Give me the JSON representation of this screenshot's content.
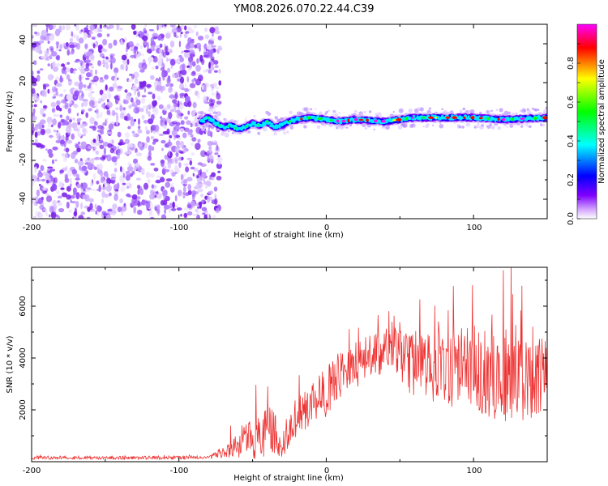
{
  "title": "YM08.2026.070.22.44.C39",
  "chart_data": [
    {
      "type": "heatmap",
      "xlabel": "Height of straight line (km)",
      "ylabel": "Frequency (Hz)",
      "xlim": [
        -200,
        150
      ],
      "ylim": [
        -50,
        50
      ],
      "xticks": [
        "-200",
        "-100",
        "0",
        "100"
      ],
      "yticks": [
        "40",
        "20",
        "0",
        "-20",
        "-40"
      ],
      "colorbar": {
        "label": "Normalized spectral amplitude",
        "range": [
          0,
          1
        ],
        "ticks": [
          "0.0",
          "0.2",
          "0.4",
          "0.6",
          "0.8"
        ],
        "colors": [
          "#ffffff",
          "#d0a0ff",
          "#8000ff",
          "#0000ff",
          "#00ffff",
          "#00ff00",
          "#ffff00",
          "#ff0000",
          "#ff00ff"
        ]
      },
      "noise_region": {
        "x_from": -200,
        "x_to": -78,
        "freq_from": -50,
        "freq_to": 50
      },
      "ridge": [
        {
          "x": -85,
          "f": 0
        },
        {
          "x": -80,
          "f": 2
        },
        {
          "x": -75,
          "f": -1
        },
        {
          "x": -70,
          "f": -3
        },
        {
          "x": -65,
          "f": -2
        },
        {
          "x": -60,
          "f": -4
        },
        {
          "x": -55,
          "f": -3
        },
        {
          "x": -50,
          "f": -1
        },
        {
          "x": -45,
          "f": -2
        },
        {
          "x": -40,
          "f": 0
        },
        {
          "x": -35,
          "f": -3
        },
        {
          "x": -30,
          "f": -2
        },
        {
          "x": -25,
          "f": 0
        },
        {
          "x": -20,
          "f": 1
        },
        {
          "x": -10,
          "f": 2
        },
        {
          "x": 0,
          "f": 1
        },
        {
          "x": 10,
          "f": 0
        },
        {
          "x": 20,
          "f": 1
        },
        {
          "x": 40,
          "f": 0
        },
        {
          "x": 60,
          "f": 2
        },
        {
          "x": 80,
          "f": 2
        },
        {
          "x": 100,
          "f": 2
        },
        {
          "x": 120,
          "f": 1
        },
        {
          "x": 150,
          "f": 2
        }
      ]
    },
    {
      "type": "line",
      "xlabel": "Height of straight line (km)",
      "ylabel": "SNR (10 * v/v)",
      "xlim": [
        -200,
        150
      ],
      "ylim": [
        0,
        7500
      ],
      "xticks": [
        "-200",
        "-100",
        "0",
        "100"
      ],
      "yticks": [
        "6000",
        "4000",
        "2000"
      ],
      "series": [
        {
          "name": "SNR",
          "color": "#ee3333",
          "envelope": [
            {
              "x": -200,
              "base": 150,
              "amp": 100
            },
            {
              "x": -80,
              "base": 160,
              "amp": 100
            },
            {
              "x": -70,
              "base": 350,
              "amp": 300
            },
            {
              "x": -60,
              "base": 700,
              "amp": 900
            },
            {
              "x": -50,
              "base": 900,
              "amp": 1200
            },
            {
              "x": -45,
              "base": 1100,
              "amp": 1600
            },
            {
              "x": -35,
              "base": 1100,
              "amp": 1400
            },
            {
              "x": -30,
              "base": 300,
              "amp": 400
            },
            {
              "x": -25,
              "base": 1100,
              "amp": 800
            },
            {
              "x": -20,
              "base": 1800,
              "amp": 1500
            },
            {
              "x": -10,
              "base": 2300,
              "amp": 1200
            },
            {
              "x": 0,
              "base": 2700,
              "amp": 1500
            },
            {
              "x": 10,
              "base": 3300,
              "amp": 1500
            },
            {
              "x": 20,
              "base": 3800,
              "amp": 1500
            },
            {
              "x": 40,
              "base": 4300,
              "amp": 1300
            },
            {
              "x": 50,
              "base": 4100,
              "amp": 1500
            },
            {
              "x": 60,
              "base": 3700,
              "amp": 2000
            },
            {
              "x": 80,
              "base": 3700,
              "amp": 2400
            },
            {
              "x": 100,
              "base": 3600,
              "amp": 2600
            },
            {
              "x": 120,
              "base": 3300,
              "amp": 2700
            },
            {
              "x": 150,
              "base": 3200,
              "amp": 2400
            }
          ]
        }
      ]
    }
  ]
}
